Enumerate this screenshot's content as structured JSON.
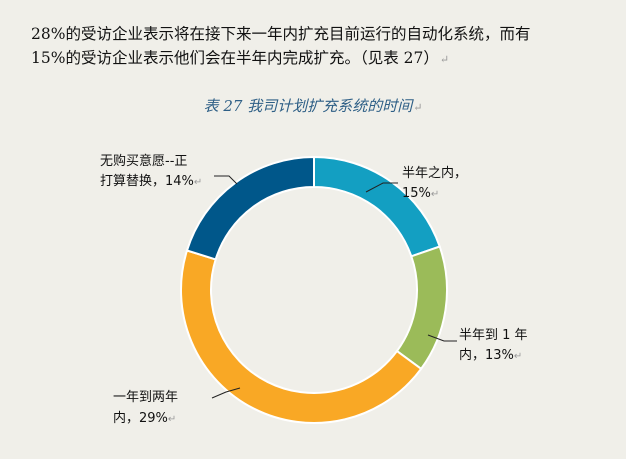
{
  "paragraph": {
    "line1": "28%的受访企业表示将在接下来一年内扩充目前运行的自动化系统，而有",
    "line2": "15%的受访企业表示他们会在半年内完成扩充。（见表 27）"
  },
  "paragraph_mark": "↵",
  "chart_data": {
    "type": "pie",
    "donut": true,
    "title": "表 27 我司计划扩充系统的时间",
    "slices": [
      {
        "label_line1": "半年之内，",
        "label_line2": "15%",
        "value": 15,
        "color": "#139fc2"
      },
      {
        "label_line1": "半年到 1 年",
        "label_line2": "内，13%",
        "value": 13,
        "color": "#9bbb59"
      },
      {
        "label_line1": "一年到两年",
        "label_line2": "内，29%",
        "value": 29,
        "color": "#f9a825"
      },
      {
        "label_line1": "无购买意愿--正",
        "label_line2": "打算替换，14%",
        "value": 14,
        "color": "#00578a"
      }
    ]
  }
}
